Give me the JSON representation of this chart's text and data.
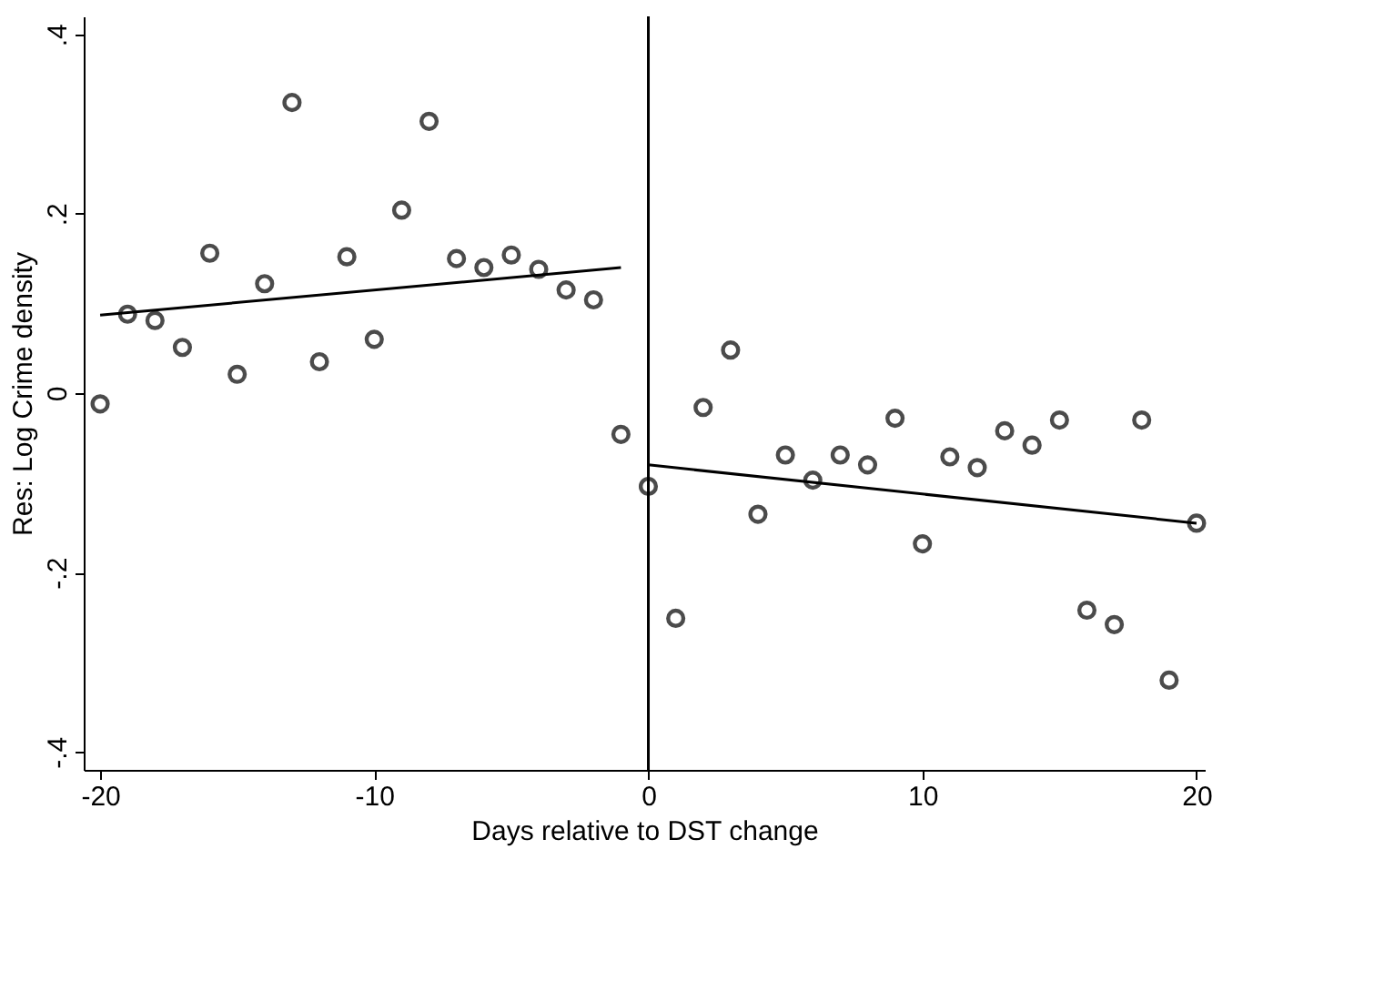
{
  "chart_data": {
    "type": "scatter",
    "xlabel": "Days relative to DST change",
    "ylabel": "Res: Log Crime density",
    "xlim": [
      -20.6,
      20.3
    ],
    "ylim": [
      -0.42,
      0.42
    ],
    "xticks": [
      -20,
      -10,
      0,
      10,
      20
    ],
    "yticks": [
      {
        "value": -0.4,
        "label": "-.4"
      },
      {
        "value": -0.2,
        "label": "-.2"
      },
      0,
      {
        "value": 0.2,
        "label": ".2"
      },
      {
        "value": 0.4,
        "label": ".4"
      }
    ],
    "grid": false,
    "series": [
      {
        "marker": "circle",
        "color": "#000000",
        "x": [
          -20,
          -19,
          -18,
          -17,
          -16,
          -15,
          -14,
          -13,
          -12,
          -11,
          -10,
          -9,
          -8,
          -7,
          -6,
          -5,
          -4,
          -3,
          -2,
          -1,
          0,
          1,
          2,
          3,
          4,
          5,
          6,
          7,
          8,
          9,
          10,
          11,
          12,
          13,
          14,
          15,
          16,
          17,
          18,
          19,
          20
        ],
        "values": [
          -0.012,
          0.088,
          0.081,
          0.051,
          0.156,
          0.021,
          0.122,
          0.324,
          0.035,
          0.152,
          0.06,
          0.204,
          0.303,
          0.15,
          0.14,
          0.154,
          0.138,
          0.115,
          0.104,
          -0.046,
          -0.104,
          -0.251,
          -0.016,
          0.048,
          -0.135,
          -0.069,
          -0.097,
          -0.069,
          -0.08,
          -0.028,
          -0.168,
          -0.071,
          -0.083,
          -0.042,
          -0.058,
          -0.03,
          -0.242,
          -0.258,
          -0.03,
          -0.32,
          -0.145
        ]
      },
      {
        "type": "line",
        "color": "#000000",
        "line_style": "solid",
        "x": [
          -20,
          -1
        ],
        "values": [
          0.087,
          0.14
        ]
      },
      {
        "type": "line",
        "color": "#000000",
        "line_style": "solid",
        "x": [
          0,
          20
        ],
        "values": [
          -0.08,
          -0.145
        ]
      }
    ],
    "ref_lines": [
      {
        "axis": "x",
        "value": 0,
        "color": "#000000",
        "line_style": "solid"
      }
    ]
  }
}
